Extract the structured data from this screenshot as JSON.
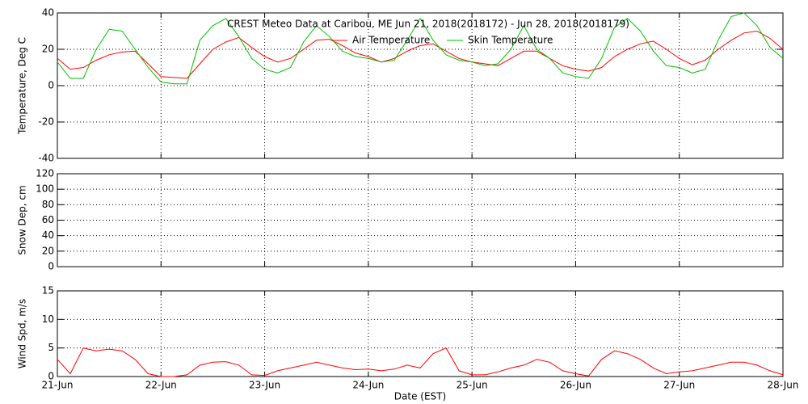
{
  "chart_data": [
    {
      "type": "line",
      "title": "CREST Meteo Data at Caribou, ME   Jun 21, 2018(2018172) - Jun 28, 2018(2018179)",
      "ylabel": "Temperature, Deg C",
      "xlim": [
        0,
        7
      ],
      "xticks": [
        0,
        1,
        2,
        3,
        4,
        5,
        6,
        7
      ],
      "ylim": [
        -40,
        40
      ],
      "yticks": [
        -40,
        -20,
        0,
        20,
        40
      ],
      "grid": true,
      "x": [
        0,
        0.125,
        0.25,
        0.375,
        0.5,
        0.625,
        0.75,
        0.875,
        1,
        1.125,
        1.25,
        1.375,
        1.5,
        1.625,
        1.75,
        1.875,
        2,
        2.125,
        2.25,
        2.375,
        2.5,
        2.625,
        2.75,
        2.875,
        3,
        3.125,
        3.25,
        3.375,
        3.5,
        3.625,
        3.75,
        3.875,
        4,
        4.125,
        4.25,
        4.375,
        4.5,
        4.625,
        4.75,
        4.875,
        5,
        5.125,
        5.25,
        5.375,
        5.5,
        5.625,
        5.75,
        5.875,
        6,
        6.125,
        6.25,
        6.375,
        6.5,
        6.625,
        6.75,
        6.875,
        7
      ],
      "series": [
        {
          "name": "Air Temperature",
          "color": "#ff0000",
          "values": [
            15,
            9,
            10,
            14,
            17,
            18.5,
            19,
            12,
            5,
            4.5,
            4,
            12,
            20,
            24,
            26.5,
            21,
            16,
            13,
            15,
            20,
            25,
            25.5,
            22,
            18,
            16,
            13,
            15,
            19,
            22,
            23,
            19,
            15,
            13,
            12,
            11,
            15,
            19,
            19,
            15,
            11,
            9,
            8,
            10,
            16,
            20,
            23,
            24.5,
            20,
            15,
            11.5,
            14,
            20,
            25,
            29,
            30,
            26,
            20
          ]
        },
        {
          "name": "Skin Temperature",
          "color": "#00c000",
          "values": [
            13,
            4,
            4,
            20,
            31,
            30,
            20,
            10,
            2,
            1,
            1,
            25,
            33,
            37,
            27,
            15,
            9,
            7,
            10,
            24,
            33,
            27,
            19,
            16,
            15,
            13,
            14,
            25,
            37,
            25,
            17,
            14,
            13,
            11,
            12,
            20,
            33,
            20,
            15,
            7,
            5,
            4,
            15,
            32,
            37,
            30,
            19,
            11,
            10,
            7,
            9,
            25,
            38,
            40,
            33,
            21,
            15
          ]
        }
      ]
    },
    {
      "type": "line",
      "ylabel": "Snow Dep, cm",
      "xlim": [
        0,
        7
      ],
      "xticks": [
        0,
        1,
        2,
        3,
        4,
        5,
        6,
        7
      ],
      "ylim": [
        0,
        120
      ],
      "yticks": [
        0,
        20,
        40,
        60,
        80,
        100,
        120
      ],
      "grid": true
    },
    {
      "type": "line",
      "ylabel": "Wind Spd, m/s",
      "xlabel": "Date (EST)",
      "xlim": [
        0,
        7
      ],
      "xticks": [
        {
          "value": 0,
          "label": "21-Jun"
        },
        {
          "value": 1,
          "label": "22-Jun"
        },
        {
          "value": 2,
          "label": "23-Jun"
        },
        {
          "value": 3,
          "label": "24-Jun"
        },
        {
          "value": 4,
          "label": "25-Jun"
        },
        {
          "value": 5,
          "label": "26-Jun"
        },
        {
          "value": 6,
          "label": "27-Jun"
        },
        {
          "value": 7,
          "label": "28-Jun"
        }
      ],
      "ylim": [
        0,
        15
      ],
      "yticks": [
        0,
        5,
        10,
        15
      ],
      "grid": true,
      "x": [
        0,
        0.125,
        0.25,
        0.375,
        0.5,
        0.625,
        0.75,
        0.875,
        1,
        1.125,
        1.25,
        1.375,
        1.5,
        1.625,
        1.75,
        1.875,
        2,
        2.125,
        2.25,
        2.375,
        2.5,
        2.625,
        2.75,
        2.875,
        3,
        3.125,
        3.25,
        3.375,
        3.5,
        3.625,
        3.75,
        3.875,
        4,
        4.125,
        4.25,
        4.375,
        4.5,
        4.625,
        4.75,
        4.875,
        5,
        5.125,
        5.25,
        5.375,
        5.5,
        5.625,
        5.75,
        5.875,
        6,
        6.125,
        6.25,
        6.375,
        6.5,
        6.625,
        6.75,
        6.875,
        7
      ],
      "series": [
        {
          "color": "#ff0000",
          "values": [
            3,
            0.5,
            5,
            4.5,
            4.8,
            4.5,
            3,
            0.5,
            0,
            0,
            0.3,
            2,
            2.5,
            2.6,
            2,
            0.3,
            0.2,
            1,
            1.5,
            2,
            2.5,
            2,
            1.5,
            1.2,
            1.3,
            1,
            1.3,
            2,
            1.5,
            4,
            5,
            1,
            0.3,
            0.3,
            0.8,
            1.5,
            2,
            3,
            2.5,
            1,
            0.5,
            0.1,
            3,
            4.5,
            4,
            3,
            1.5,
            0.5,
            0.8,
            1,
            1.5,
            2,
            2.5,
            2.5,
            2,
            1,
            0.3
          ]
        }
      ]
    }
  ]
}
